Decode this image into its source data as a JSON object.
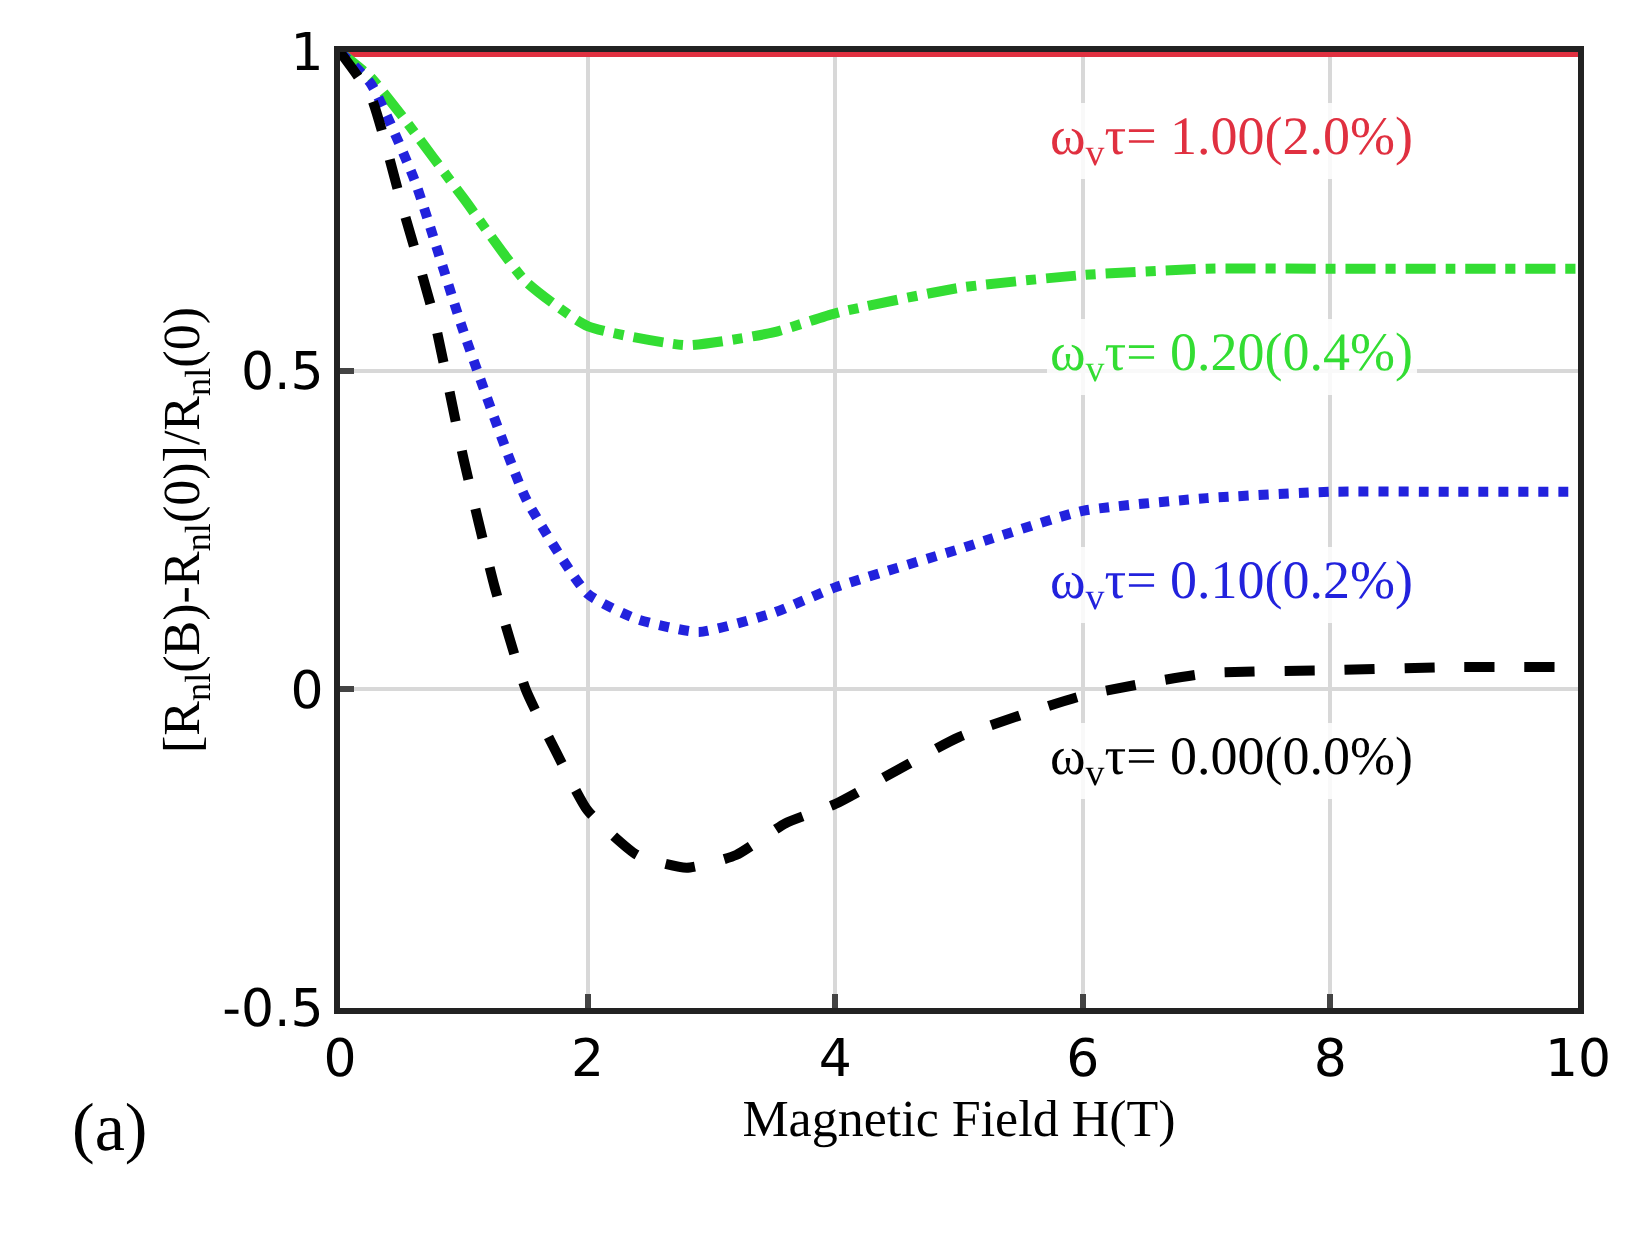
{
  "chart_data": {
    "type": "line",
    "xlabel": "Magnetic Field H(T)",
    "ylabel": "[R$_{nl}$(B)-R$_{nl}$(0)]/R$_{nl}$(0)",
    "xlim": [
      0,
      10
    ],
    "ylim": [
      -0.5,
      1
    ],
    "xticks": [
      0,
      2,
      4,
      6,
      8,
      10
    ],
    "yticks": [
      -0.5,
      0,
      0.5,
      1
    ],
    "grid": true,
    "legend": false,
    "annotations": [
      "(a)"
    ],
    "series": [
      {
        "name": "ω$_{v}$τ= 1.00(2.0%)",
        "color": "#e03040",
        "line_style": "solid",
        "x": [
          0,
          10
        ],
        "values": [
          1,
          1
        ]
      },
      {
        "name": "ω$_{v}$τ= 0.20(0.4%)",
        "color": "#33dd33",
        "line_style": "dashdot",
        "x": [
          0,
          0.25,
          0.5,
          1,
          1.5,
          2,
          2.8,
          3.5,
          4,
          5,
          6,
          7,
          8,
          9,
          10
        ],
        "values": [
          1,
          0.96,
          0.9,
          0.77,
          0.64,
          0.57,
          0.54,
          0.56,
          0.59,
          0.63,
          0.65,
          0.66,
          0.66,
          0.66,
          0.66
        ]
      },
      {
        "name": "ω$_{v}$τ= 0.10(0.2%)",
        "color": "#2222dd",
        "line_style": "dotted",
        "x": [
          0,
          0.25,
          0.6,
          1,
          1.5,
          2,
          2.4,
          2.9,
          3.5,
          4,
          5,
          6,
          7,
          8,
          9,
          10
        ],
        "values": [
          1,
          0.95,
          0.8,
          0.56,
          0.3,
          0.15,
          0.11,
          0.09,
          0.12,
          0.16,
          0.22,
          0.28,
          0.3,
          0.31,
          0.31,
          0.31
        ]
      },
      {
        "name": "ω$_{v}$τ= 0.00(0.0%)",
        "color": "#000000",
        "line_style": "dashed",
        "x": [
          0,
          0.25,
          0.5,
          0.75,
          1,
          1.25,
          1.5,
          1.75,
          2,
          2.4,
          2.8,
          3.2,
          3.6,
          4,
          5,
          6,
          7,
          8,
          9,
          10
        ],
        "values": [
          1,
          0.93,
          0.76,
          0.59,
          0.36,
          0.16,
          0,
          -0.1,
          -0.19,
          -0.26,
          -0.28,
          -0.26,
          -0.21,
          -0.18,
          -0.075,
          -0.01,
          0.025,
          0.03,
          0.035,
          0.035
        ]
      }
    ]
  }
}
